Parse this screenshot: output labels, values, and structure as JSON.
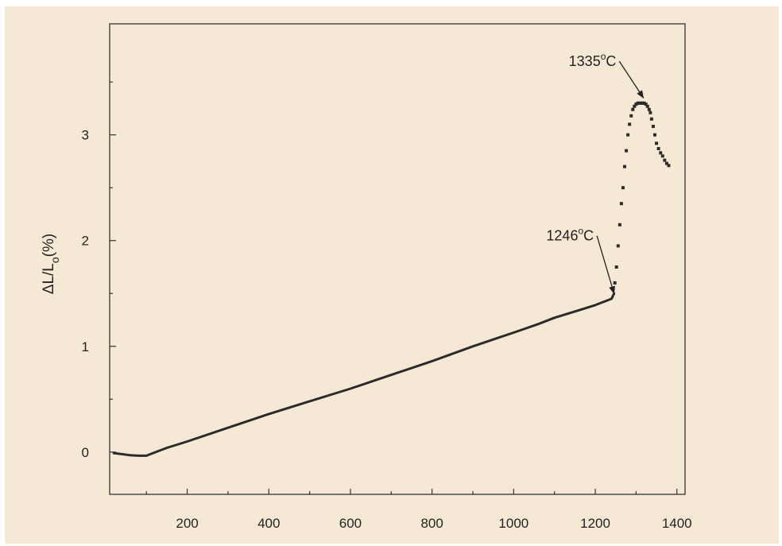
{
  "chart_data": {
    "type": "line",
    "title": "",
    "xlabel": "",
    "ylabel": "ΔL/Lo(%)",
    "ylabel_parts": {
      "delta": "ΔL/L",
      "sub": "o",
      "unit": "(%)"
    },
    "xlim": [
      10,
      1420
    ],
    "ylim": [
      -0.4,
      4.05
    ],
    "x_ticks": [
      200,
      400,
      600,
      800,
      1000,
      1200,
      1400
    ],
    "y_ticks": [
      0,
      1,
      2,
      3
    ],
    "grid": false,
    "colors": {
      "line": "#2b2b2b",
      "background": "#f5e9d6",
      "axis": "#333333"
    },
    "series": [
      {
        "style": "solid",
        "x": [
          20,
          40,
          60,
          80,
          100,
          110,
          150,
          200,
          300,
          400,
          500,
          600,
          700,
          800,
          900,
          1000,
          1060,
          1100,
          1150,
          1200,
          1220,
          1240,
          1246
        ],
        "y": [
          -0.01,
          -0.02,
          -0.03,
          -0.035,
          -0.035,
          -0.02,
          0.04,
          0.1,
          0.23,
          0.36,
          0.48,
          0.6,
          0.73,
          0.86,
          1.0,
          1.13,
          1.21,
          1.27,
          1.33,
          1.39,
          1.42,
          1.45,
          1.5
        ]
      },
      {
        "style": "dotted",
        "x": [
          1248,
          1252,
          1256,
          1260,
          1264,
          1268,
          1272,
          1276,
          1280,
          1284,
          1288,
          1292,
          1296,
          1300,
          1304,
          1308,
          1312,
          1316,
          1320,
          1324,
          1328,
          1332,
          1335,
          1338,
          1342,
          1346,
          1350,
          1355,
          1360,
          1365,
          1370,
          1375,
          1380
        ],
        "y": [
          1.6,
          1.75,
          1.95,
          2.15,
          2.35,
          2.5,
          2.7,
          2.85,
          3.0,
          3.1,
          3.18,
          3.24,
          3.27,
          3.29,
          3.3,
          3.3,
          3.3,
          3.3,
          3.3,
          3.29,
          3.27,
          3.24,
          3.21,
          3.15,
          3.08,
          3.0,
          2.92,
          2.87,
          2.83,
          2.8,
          2.76,
          2.73,
          2.71
        ]
      }
    ],
    "annotations": [
      {
        "label": "1246",
        "unit": "C",
        "target": [
          1246,
          1.5
        ],
        "text_at": [
          1080,
          2.0
        ]
      },
      {
        "label": "1335",
        "unit": "C",
        "target": [
          1318,
          3.35
        ],
        "text_at": [
          1135,
          3.65
        ]
      }
    ]
  }
}
